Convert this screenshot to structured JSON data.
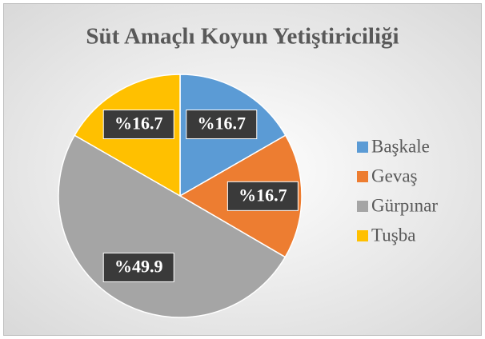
{
  "chart_data": {
    "type": "pie",
    "title": "Süt Amaçlı Koyun Yetiştiriciliği",
    "categories": [
      "Başkale",
      "Gevaş",
      "Gürpınar",
      "Tuşba"
    ],
    "values": [
      16.7,
      16.7,
      49.9,
      16.7
    ],
    "value_labels": [
      "%16.7",
      "%16.7",
      "%49.9",
      "%16.7"
    ],
    "colors": [
      "#5b9bd5",
      "#ed7d31",
      "#a5a5a5",
      "#ffc000"
    ],
    "legend": "right"
  }
}
